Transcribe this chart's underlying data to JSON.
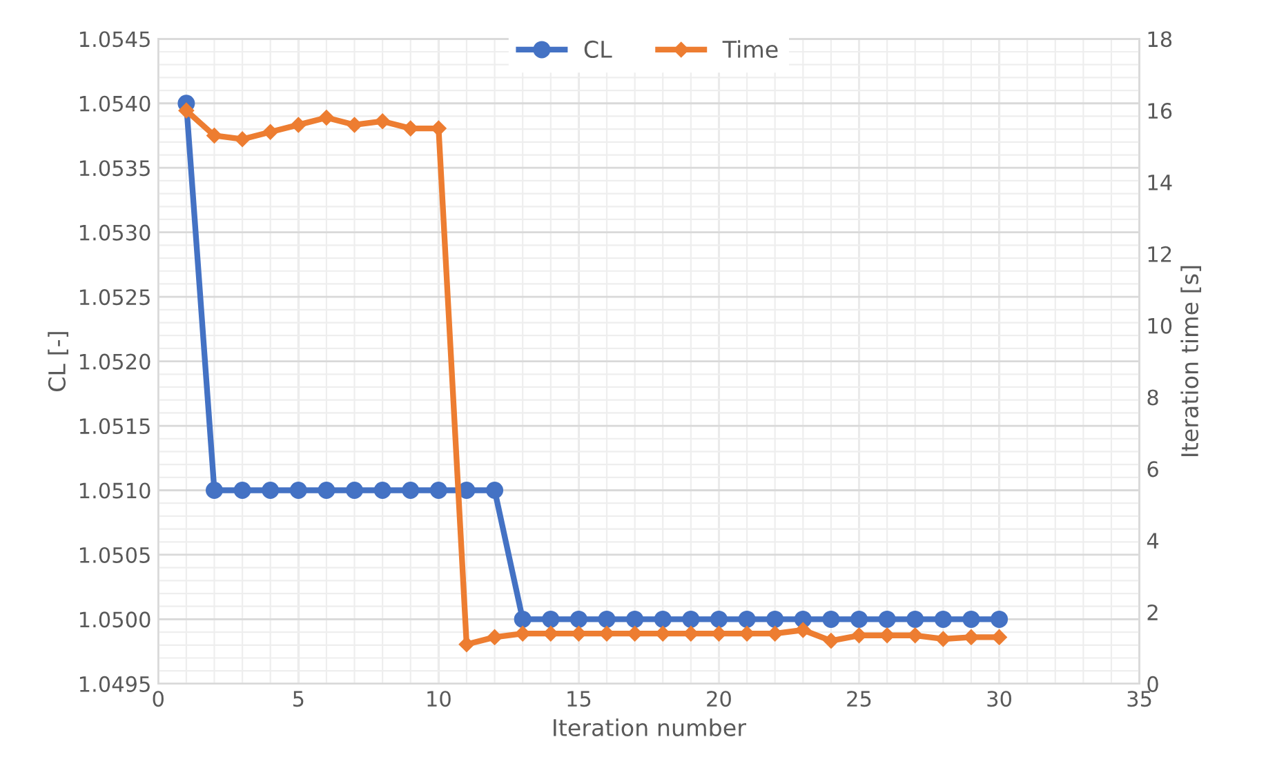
{
  "chart_data": {
    "type": "line",
    "xlabel": "Iteration number",
    "ylabel": "CL [-]",
    "y2label": "Iteration time [s]",
    "x": [
      1,
      2,
      3,
      4,
      5,
      6,
      7,
      8,
      9,
      10,
      11,
      12,
      13,
      14,
      15,
      16,
      17,
      18,
      19,
      20,
      21,
      22,
      23,
      24,
      25,
      26,
      27,
      28,
      29,
      30
    ],
    "series": [
      {
        "name": "CL",
        "color": "#4472c4",
        "marker": "circle",
        "values": [
          1.054,
          1.051,
          1.051,
          1.051,
          1.051,
          1.051,
          1.051,
          1.051,
          1.051,
          1.051,
          1.051,
          1.051,
          1.05,
          1.05,
          1.05,
          1.05,
          1.05,
          1.05,
          1.05,
          1.05,
          1.05,
          1.05,
          1.05,
          1.05,
          1.05,
          1.05,
          1.05,
          1.05,
          1.05,
          1.05
        ]
      },
      {
        "name": "Time",
        "color": "#ed7d31",
        "marker": "diamond",
        "axis": "y2",
        "values": [
          16.0,
          15.3,
          15.2,
          15.4,
          15.6,
          15.8,
          15.6,
          15.7,
          15.5,
          15.5,
          1.1,
          1.3,
          1.4,
          1.4,
          1.4,
          1.4,
          1.4,
          1.4,
          1.4,
          1.4,
          1.4,
          1.4,
          1.5,
          1.2,
          1.35,
          1.35,
          1.35,
          1.25,
          1.3,
          1.3
        ]
      }
    ],
    "xlim": [
      0,
      35
    ],
    "xticks": [
      0,
      5,
      10,
      15,
      20,
      25,
      30,
      35
    ],
    "ylim": [
      1.0495,
      1.0545
    ],
    "yticks": [
      {
        "value": 1.0495,
        "label": "1.0495"
      },
      {
        "value": 1.05,
        "label": "1.0500"
      },
      {
        "value": 1.0505,
        "label": "1.0505"
      },
      {
        "value": 1.051,
        "label": "1.0510"
      },
      {
        "value": 1.0515,
        "label": "1.0515"
      },
      {
        "value": 1.052,
        "label": "1.0520"
      },
      {
        "value": 1.0525,
        "label": "1.0525"
      },
      {
        "value": 1.053,
        "label": "1.0530"
      },
      {
        "value": 1.0535,
        "label": "1.0535"
      },
      {
        "value": 1.054,
        "label": "1.0540"
      },
      {
        "value": 1.0545,
        "label": "1.0545"
      }
    ],
    "y2lim": [
      0,
      18
    ],
    "y2ticks": [
      0,
      2,
      4,
      6,
      8,
      10,
      12,
      14,
      16,
      18
    ],
    "grid": true,
    "legend": "top",
    "line_style": "solid"
  }
}
